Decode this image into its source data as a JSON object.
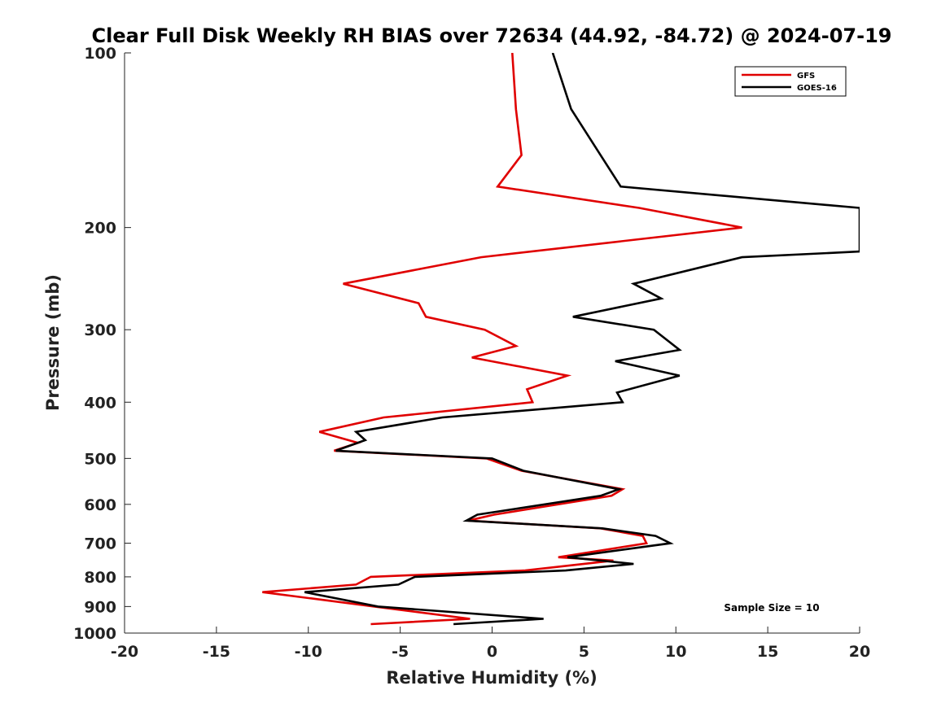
{
  "chart_data": {
    "type": "line",
    "title": "Clear Full Disk Weekly RH BIAS over 72634 (44.92, -84.72) @ 2024-07-19",
    "xlabel": "Relative Humidity (%)",
    "ylabel": "Pressure (mb)",
    "xlim": [
      -20,
      20
    ],
    "ylim": [
      100,
      1000
    ],
    "yscale": "log",
    "yreversed": true,
    "xticks": [
      -20,
      -15,
      -10,
      -5,
      0,
      5,
      10,
      15,
      20
    ],
    "xtick_labels": [
      "-20",
      "-15",
      "-10",
      "-5",
      "0",
      "5",
      "10",
      "15",
      "20"
    ],
    "yticks": [
      100,
      200,
      300,
      400,
      500,
      600,
      700,
      800,
      900,
      1000
    ],
    "ytick_labels": [
      "100",
      "200",
      "300",
      "400",
      "500",
      "600",
      "700",
      "800",
      "900",
      "1000"
    ],
    "grid": false,
    "legend_position": "top-right",
    "series": [
      {
        "name": "GFS",
        "color": "#e00000",
        "points": [
          [
            1.1,
            100
          ],
          [
            1.3,
            125
          ],
          [
            1.6,
            150
          ],
          [
            0.3,
            170
          ],
          [
            8.0,
            185
          ],
          [
            13.6,
            200
          ],
          [
            -0.6,
            225
          ],
          [
            -8.1,
            250
          ],
          [
            -4.0,
            270
          ],
          [
            -3.6,
            285
          ],
          [
            -0.4,
            300
          ],
          [
            1.3,
            320
          ],
          [
            -1.1,
            335
          ],
          [
            4.1,
            360
          ],
          [
            1.9,
            380
          ],
          [
            2.2,
            400
          ],
          [
            -5.9,
            425
          ],
          [
            -9.4,
            450
          ],
          [
            -7.3,
            470
          ],
          [
            -8.6,
            485
          ],
          [
            -0.3,
            500
          ],
          [
            1.6,
            525
          ],
          [
            7.1,
            565
          ],
          [
            6.5,
            580
          ],
          [
            0.1,
            625
          ],
          [
            -1.3,
            640
          ],
          [
            5.9,
            660
          ],
          [
            8.2,
            680
          ],
          [
            8.4,
            700
          ],
          [
            3.6,
            740
          ],
          [
            6.6,
            750
          ],
          [
            1.8,
            780
          ],
          [
            -6.6,
            800
          ],
          [
            -7.4,
            825
          ],
          [
            -12.5,
            850
          ],
          [
            -6.4,
            900
          ],
          [
            -1.2,
            945
          ],
          [
            -6.6,
            965
          ]
        ]
      },
      {
        "name": "GOES-16",
        "color": "#000000",
        "points": [
          [
            3.3,
            100
          ],
          [
            4.3,
            125
          ],
          [
            5.9,
            150
          ],
          [
            7.0,
            170
          ],
          [
            20.0,
            185
          ],
          [
            20.0,
            200
          ],
          [
            20.0,
            220
          ],
          [
            13.6,
            225
          ],
          [
            7.7,
            250
          ],
          [
            9.2,
            265
          ],
          [
            4.4,
            285
          ],
          [
            8.8,
            300
          ],
          [
            10.2,
            325
          ],
          [
            6.7,
            340
          ],
          [
            10.2,
            360
          ],
          [
            6.8,
            385
          ],
          [
            7.1,
            400
          ],
          [
            -2.7,
            425
          ],
          [
            -7.4,
            450
          ],
          [
            -6.9,
            465
          ],
          [
            -8.5,
            485
          ],
          [
            0.0,
            500
          ],
          [
            1.7,
            525
          ],
          [
            6.9,
            565
          ],
          [
            5.9,
            580
          ],
          [
            -0.8,
            625
          ],
          [
            -1.4,
            640
          ],
          [
            6.0,
            660
          ],
          [
            8.9,
            680
          ],
          [
            9.7,
            700
          ],
          [
            4.1,
            740
          ],
          [
            7.7,
            760
          ],
          [
            4.0,
            780
          ],
          [
            -4.2,
            800
          ],
          [
            -5.1,
            825
          ],
          [
            -10.2,
            850
          ],
          [
            -6.2,
            900
          ],
          [
            2.8,
            945
          ],
          [
            -2.1,
            965
          ]
        ]
      }
    ],
    "annotations": [
      "Sample Size = 10"
    ]
  }
}
